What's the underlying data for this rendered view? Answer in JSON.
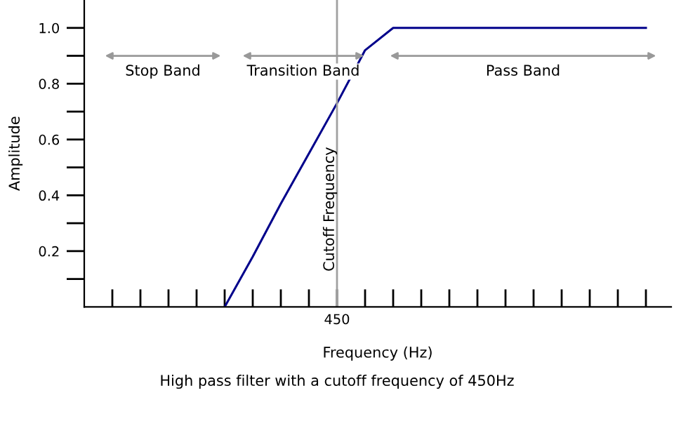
{
  "chart_data": {
    "type": "line",
    "xlabel": "Frequency (Hz)",
    "ylabel": "Amplitude",
    "categories": [
      null,
      null,
      null,
      null,
      null,
      null,
      null,
      null,
      "450",
      null,
      null,
      null,
      null,
      null,
      null,
      null,
      null,
      null,
      null,
      null
    ],
    "series": [
      {
        "color": "#00008b",
        "values": [
          null,
          null,
          null,
          null,
          0,
          0.18,
          0.37,
          0.55,
          0.73,
          0.92,
          1.0,
          1.0,
          1.0,
          1.0,
          1.0,
          1.0,
          1.0,
          1.0,
          1.0,
          1.0
        ]
      }
    ],
    "ylim": [
      0,
      1.1
    ],
    "yticks": [
      {
        "value": 0.1,
        "label": null
      },
      0.2,
      {
        "value": 0.3,
        "label": null
      },
      0.4,
      {
        "value": 0.5,
        "label": null
      },
      0.6,
      {
        "value": 0.7,
        "label": null
      },
      0.8,
      {
        "value": 0.9,
        "label": null
      },
      {
        "value": 1.0,
        "label": "1.0"
      }
    ],
    "ref_lines": [
      {
        "axis": "x",
        "value": "450",
        "label": "Cutoff Frequency",
        "color": "#a0a0a0"
      }
    ],
    "annotations": [
      "Stop Band",
      "Transition Band",
      "Pass Band",
      "High pass filter with a cutoff frequency of 450Hz"
    ],
    "grid": false,
    "legend": false,
    "marker": "none",
    "line_style": "solid"
  }
}
